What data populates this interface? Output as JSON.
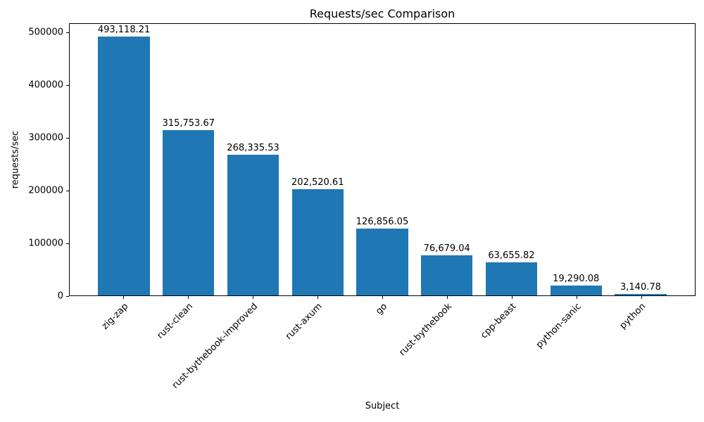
{
  "chart_data": {
    "type": "bar",
    "title": "Requests/sec Comparison",
    "xlabel": "Subject",
    "ylabel": "requests/sec",
    "categories": [
      "zig-zap",
      "rust-clean",
      "rust-bythebook-improved",
      "rust-axum",
      "go",
      "rust-bythebook",
      "cpp-beast",
      "python-sanic",
      "python"
    ],
    "values": [
      493118.21,
      315753.67,
      268335.53,
      202520.61,
      126856.05,
      76679.04,
      63655.82,
      19290.08,
      3140.78
    ],
    "value_labels": [
      "493,118.21",
      "315,753.67",
      "268,335.53",
      "202,520.61",
      "126,856.05",
      "76,679.04",
      "63,655.82",
      "19,290.08",
      "3,140.78"
    ],
    "bar_color": "#1f77b4",
    "ylim": [
      0,
      517774
    ],
    "xlim": [
      -0.84,
      8.84
    ],
    "bar_width": 0.8,
    "yticks": [
      0,
      100000,
      200000,
      300000,
      400000,
      500000
    ],
    "ytick_labels": [
      "0",
      "100000",
      "200000",
      "300000",
      "400000",
      "500000"
    ],
    "xtick_rotation": 45,
    "grid": false,
    "legend": "none"
  }
}
